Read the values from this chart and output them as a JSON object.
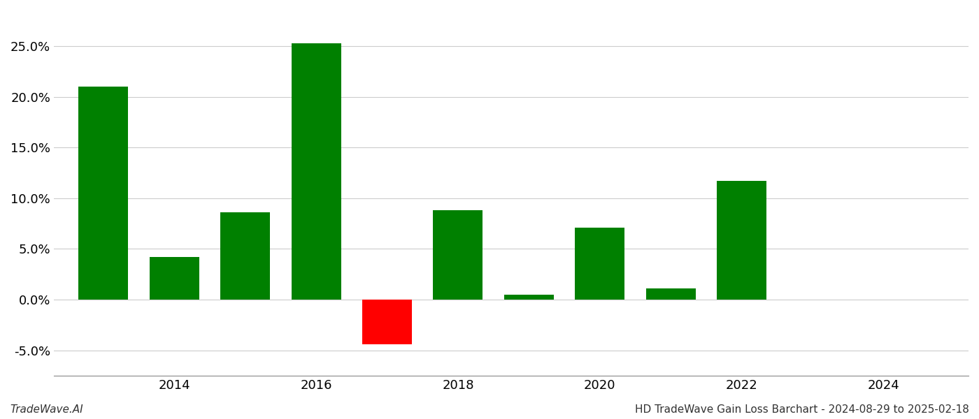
{
  "bar_positions": [
    2013,
    2014,
    2015,
    2016,
    2017,
    2018,
    2019,
    2020,
    2021,
    2022,
    2023
  ],
  "values": [
    0.21,
    0.042,
    0.086,
    0.253,
    -0.044,
    0.088,
    0.005,
    0.071,
    0.011,
    0.117,
    0.0
  ],
  "bar_width": 0.7,
  "color_positive": "#008000",
  "color_negative": "#FF0000",
  "background_color": "#ffffff",
  "grid_color": "#cccccc",
  "ylim_min": -0.075,
  "ylim_max": 0.285,
  "yticks": [
    -0.05,
    0.0,
    0.05,
    0.1,
    0.15,
    0.2,
    0.25
  ],
  "xlim_min": 2012.3,
  "xlim_max": 2025.2,
  "xtick_years": [
    2014,
    2016,
    2018,
    2020,
    2022,
    2024
  ],
  "footer_left": "TradeWave.AI",
  "footer_right": "HD TradeWave Gain Loss Barchart - 2024-08-29 to 2025-02-18",
  "tick_fontsize": 13,
  "footer_fontsize": 11
}
